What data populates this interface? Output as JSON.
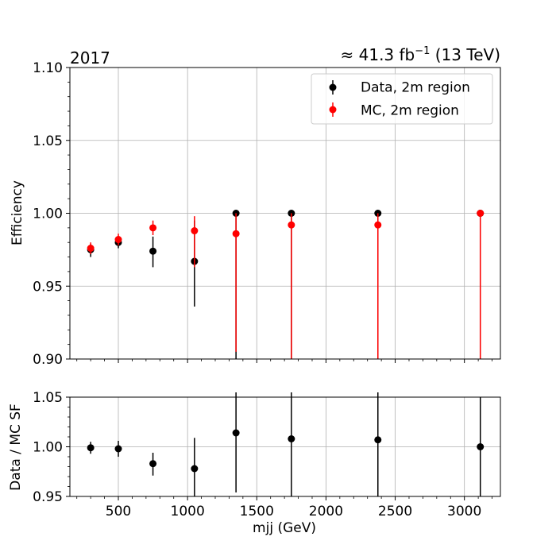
{
  "chart_data": [
    {
      "type": "scatter",
      "panel": "main",
      "title_left": "2017",
      "title_right_prefix": "≈ 41.3 fb",
      "title_right_sup": "−1",
      "title_right_suffix": " (13 TeV)",
      "xlabel": "",
      "ylabel": "Efficiency",
      "xlim": [
        150,
        3260
      ],
      "ylim": [
        0.9,
        1.1
      ],
      "x_ticks": [
        500,
        1000,
        1500,
        2000,
        2500,
        3000
      ],
      "y_ticks": [
        0.9,
        0.95,
        1.0,
        1.05,
        1.1
      ],
      "y_tick_labels": [
        "0.90",
        "0.95",
        "1.00",
        "1.05",
        "1.10"
      ],
      "grid": true,
      "legend_position": "top-right",
      "series": [
        {
          "name": "Data, 2m region",
          "color": "#000000",
          "x": [
            300,
            500,
            750,
            1050,
            1350,
            1750,
            2375,
            3115
          ],
          "y": [
            0.975,
            0.98,
            0.974,
            0.967,
            1.0,
            1.0,
            1.0,
            1.0
          ],
          "yerr_low": [
            0.005,
            0.004,
            0.011,
            0.031,
            0.1,
            0.1,
            0.1,
            0.1
          ],
          "yerr_high": [
            0.004,
            0.004,
            0.01,
            0.028,
            0.0,
            0.0,
            0.0,
            0.0
          ]
        },
        {
          "name": "MC, 2m region",
          "color": "#ff0000",
          "x": [
            300,
            500,
            750,
            1050,
            1350,
            1750,
            2375,
            3115
          ],
          "y": [
            0.976,
            0.982,
            0.99,
            0.988,
            0.986,
            0.992,
            0.992,
            1.0
          ],
          "yerr_low": [
            0.004,
            0.004,
            0.005,
            0.025,
            0.081,
            0.1,
            0.1,
            0.1
          ],
          "yerr_high": [
            0.004,
            0.004,
            0.005,
            0.01,
            0.014,
            0.008,
            0.008,
            0.0
          ]
        }
      ]
    },
    {
      "type": "scatter",
      "panel": "ratio",
      "xlabel": "mjj (GeV)",
      "ylabel": "Data / MC SF",
      "xlim": [
        150,
        3260
      ],
      "ylim": [
        0.95,
        1.05
      ],
      "x_ticks": [
        500,
        1000,
        1500,
        2000,
        2500,
        3000
      ],
      "x_tick_labels": [
        "500",
        "1000",
        "1500",
        "2000",
        "2500",
        "3000"
      ],
      "y_ticks": [
        0.95,
        1.0,
        1.05
      ],
      "y_tick_labels": [
        "0.95",
        "1.00",
        "1.05"
      ],
      "grid": true,
      "series": [
        {
          "color": "#000000",
          "x": [
            300,
            500,
            750,
            1050,
            1350,
            1750,
            2375,
            3115
          ],
          "y": [
            0.999,
            0.998,
            0.983,
            0.978,
            1.014,
            1.008,
            1.007,
            1.0
          ],
          "yerr_low": [
            0.006,
            0.008,
            0.012,
            0.03,
            0.06,
            0.06,
            0.06,
            0.06
          ],
          "yerr_high": [
            0.006,
            0.008,
            0.011,
            0.031,
            0.05,
            0.05,
            0.05,
            0.05
          ]
        }
      ]
    }
  ]
}
